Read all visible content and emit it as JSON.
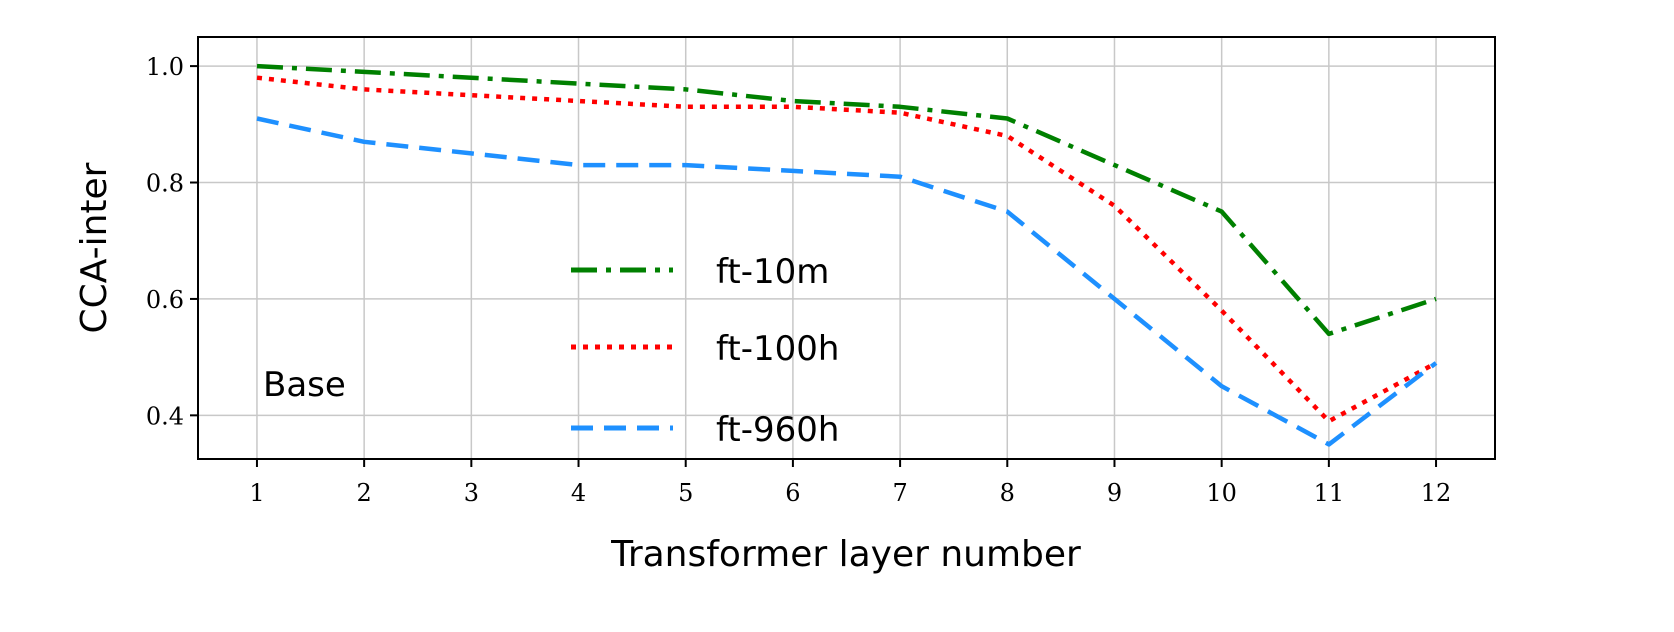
{
  "chart_data": {
    "type": "line",
    "xlabel": "Transformer layer number",
    "ylabel": "CCA-inter",
    "annotation": "Base",
    "x": [
      1,
      2,
      3,
      4,
      5,
      6,
      7,
      8,
      9,
      10,
      11,
      12
    ],
    "x_ticks": [
      "1",
      "2",
      "3",
      "4",
      "5",
      "6",
      "7",
      "8",
      "9",
      "10",
      "11",
      "12"
    ],
    "y_ticks": [
      "0.4",
      "0.6",
      "0.8",
      "1.0"
    ],
    "y_tick_values": [
      0.4,
      0.6,
      0.8,
      1.0
    ],
    "xlim": [
      0.45,
      12.55
    ],
    "ylim": [
      0.325,
      1.05
    ],
    "grid": true,
    "legend_position": "center",
    "series": [
      {
        "name": "ft-10m",
        "color": "#008000",
        "style": "dashdot",
        "values": [
          1.0,
          0.99,
          0.98,
          0.97,
          0.96,
          0.94,
          0.93,
          0.91,
          0.83,
          0.75,
          0.54,
          0.6
        ]
      },
      {
        "name": "ft-100h",
        "color": "#ff0000",
        "style": "dotted",
        "values": [
          0.98,
          0.96,
          0.95,
          0.94,
          0.93,
          0.93,
          0.92,
          0.88,
          0.76,
          0.58,
          0.39,
          0.49
        ]
      },
      {
        "name": "ft-960h",
        "color": "#1e90ff",
        "style": "dashed",
        "values": [
          0.91,
          0.87,
          0.85,
          0.83,
          0.83,
          0.82,
          0.81,
          0.75,
          0.6,
          0.45,
          0.35,
          0.49
        ]
      }
    ]
  }
}
